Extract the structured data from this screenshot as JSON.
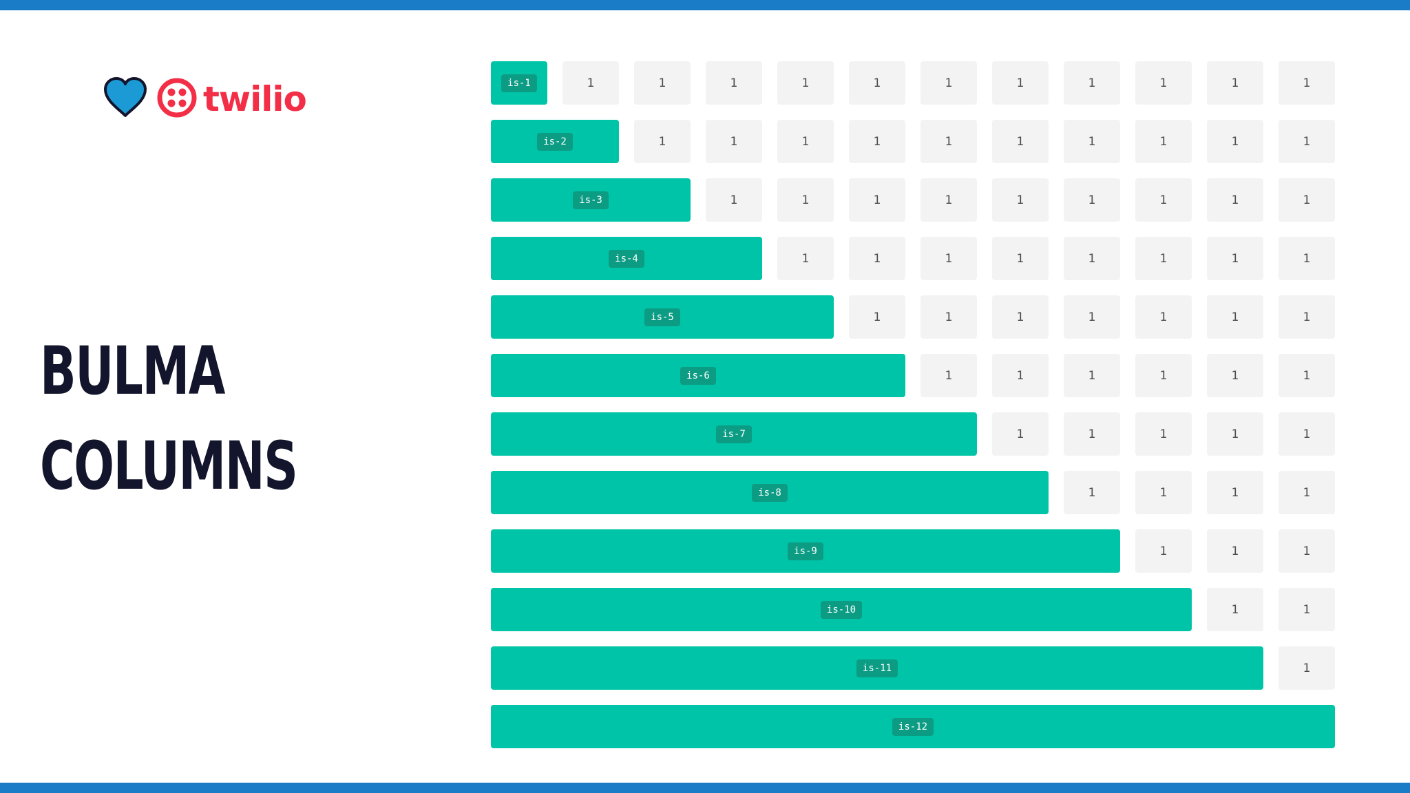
{
  "colors": {
    "frame_bar": "#1a7cc6",
    "heart": "#1c9ad6",
    "brand_red": "#f22f46",
    "title": "#12152b",
    "column_primary": "#00c4a7",
    "column_tag": "#0c9c84",
    "column_filler": "#f3f3f4"
  },
  "logo": {
    "heart_icon": "heart-icon",
    "brand_icon": "twilio-logo-icon",
    "wordmark": "twilio"
  },
  "title": {
    "line1": "BULMA",
    "line2": "COLUMNS"
  },
  "filler_label": "1",
  "rows": [
    {
      "tag": "is-1",
      "span": 1
    },
    {
      "tag": "is-2",
      "span": 2
    },
    {
      "tag": "is-3",
      "span": 3
    },
    {
      "tag": "is-4",
      "span": 4
    },
    {
      "tag": "is-5",
      "span": 5
    },
    {
      "tag": "is-6",
      "span": 6
    },
    {
      "tag": "is-7",
      "span": 7
    },
    {
      "tag": "is-8",
      "span": 8
    },
    {
      "tag": "is-9",
      "span": 9
    },
    {
      "tag": "is-10",
      "span": 10
    },
    {
      "tag": "is-11",
      "span": 11
    },
    {
      "tag": "is-12",
      "span": 12
    }
  ]
}
